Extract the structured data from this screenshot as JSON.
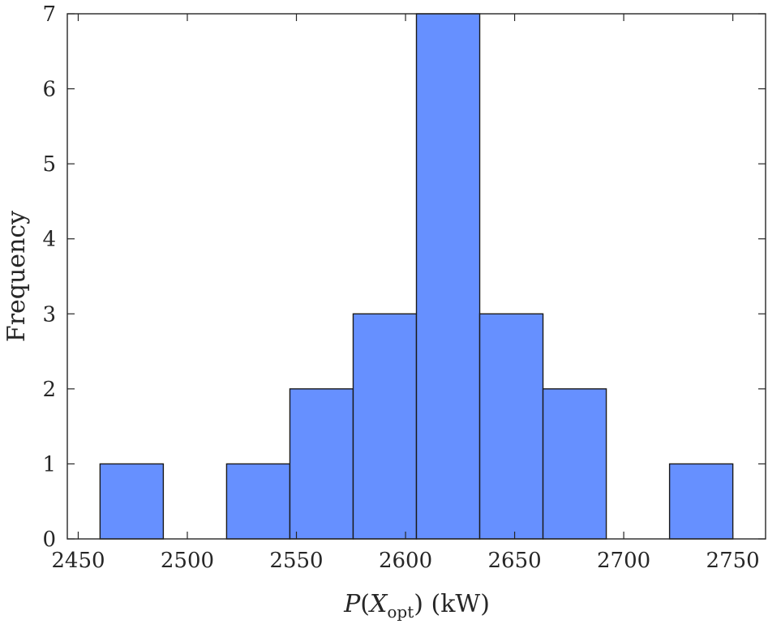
{
  "chart_data": {
    "type": "bar",
    "bins": [
      {
        "x0": 2460.0,
        "x1": 2489.0,
        "count": 1
      },
      {
        "x0": 2489.0,
        "x1": 2518.0,
        "count": 0
      },
      {
        "x0": 2518.0,
        "x1": 2547.0,
        "count": 1
      },
      {
        "x0": 2547.0,
        "x1": 2576.0,
        "count": 2
      },
      {
        "x0": 2576.0,
        "x1": 2605.0,
        "count": 3
      },
      {
        "x0": 2605.0,
        "x1": 2634.0,
        "count": 7
      },
      {
        "x0": 2634.0,
        "x1": 2663.0,
        "count": 3
      },
      {
        "x0": 2663.0,
        "x1": 2692.0,
        "count": 2
      },
      {
        "x0": 2692.0,
        "x1": 2721.0,
        "count": 0
      },
      {
        "x0": 2721.0,
        "x1": 2750.0,
        "count": 1
      }
    ],
    "xlim": [
      2445,
      2765
    ],
    "ylim": [
      0,
      7
    ],
    "xticks": [
      2450,
      2500,
      2550,
      2600,
      2650,
      2700,
      2750
    ],
    "yticks": [
      0,
      1,
      2,
      3,
      4,
      5,
      6,
      7
    ],
    "xlabel": {
      "symbol": "P",
      "open": "(",
      "var": "X",
      "sub": "opt",
      "close": ")",
      "unit": " (kW)"
    },
    "ylabel": "Frequency",
    "bar_color": "#6690ff",
    "edge_color": "#1a1a1a",
    "grid": false
  }
}
